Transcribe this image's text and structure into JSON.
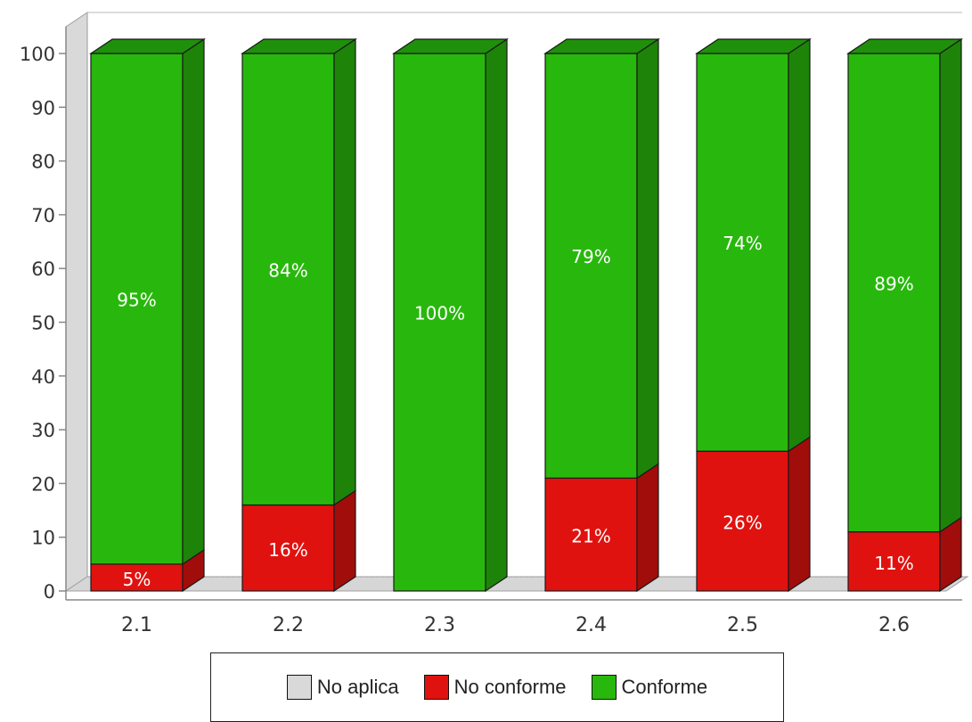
{
  "chart_data": {
    "type": "bar",
    "stacked": true,
    "three_d": true,
    "categories": [
      "2.1",
      "2.2",
      "2.3",
      "2.4",
      "2.5",
      "2.6"
    ],
    "series": [
      {
        "name": "No aplica",
        "color": "#d9d9d9",
        "values": [
          0,
          0,
          0,
          0,
          0,
          0
        ],
        "labels": [
          "",
          "",
          "",
          "",
          "",
          ""
        ]
      },
      {
        "name": "No conforme",
        "color": "#e0120f",
        "values": [
          5,
          16,
          0,
          21,
          26,
          11
        ],
        "labels": [
          "5%",
          "16%",
          "",
          "21%",
          "26%",
          "11%"
        ]
      },
      {
        "name": "Conforme",
        "color": "#28b80d",
        "values": [
          95,
          84,
          100,
          79,
          74,
          89
        ],
        "labels": [
          "95%",
          "84%",
          "100%",
          "79%",
          "74%",
          "89%"
        ]
      }
    ],
    "y_ticks": [
      "0",
      "10",
      "20",
      "30",
      "40",
      "50",
      "60",
      "70",
      "80",
      "90",
      "100"
    ],
    "ylim": [
      0,
      100
    ],
    "title": "",
    "xlabel": "",
    "ylabel": "",
    "grid": false,
    "legend_position": "bottom"
  }
}
